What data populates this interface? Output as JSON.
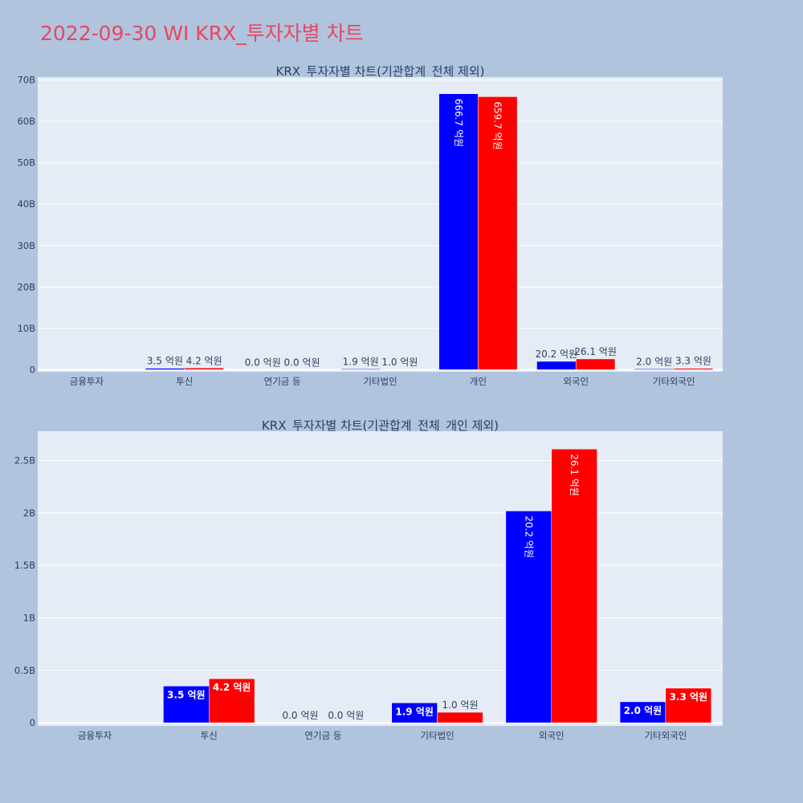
{
  "page": {
    "title": "2022-09-30 WI KRX_투자자별 차트"
  },
  "colors": {
    "buy": "#0000ff",
    "sell": "#ff0000",
    "plot_bg": "#e5ecf6",
    "page_bg": "#b0c4de",
    "title": "#e8475f"
  },
  "chart_data": [
    {
      "type": "bar",
      "title": "KRX_투자자별 차트(기관합계_전체 제외)",
      "categories": [
        "금융투자",
        "투신",
        "연기금 등",
        "기타법인",
        "개인",
        "외국인",
        "기타외국인"
      ],
      "series": [
        {
          "color": "#0000ff",
          "values": [
            0,
            350000000,
            0,
            190000000,
            66670000000,
            2020000000,
            200000000
          ],
          "labels": [
            "",
            "3.5 억원",
            "0.0 억원",
            "1.9 억원",
            "666.7 억원",
            "20.2 억원",
            "2.0 억원"
          ]
        },
        {
          "color": "#ff0000",
          "values": [
            0,
            420000000,
            0,
            100000000,
            65970000000,
            2610000000,
            330000000
          ],
          "labels": [
            "",
            "4.2 억원",
            "0.0 억원",
            "1.0 억원",
            "659.7 억원",
            "26.1 억원",
            "3.3 억원"
          ]
        }
      ],
      "yticks": [
        0,
        10000000000,
        20000000000,
        30000000000,
        40000000000,
        50000000000,
        60000000000,
        70000000000
      ],
      "ytick_labels": [
        "0",
        "10B",
        "20B",
        "30B",
        "40B",
        "50B",
        "60B",
        "70B"
      ],
      "ylim": [
        -500000000,
        70700000000
      ],
      "grid": true
    },
    {
      "type": "bar",
      "title": "KRX_투자자별 차트(기관합계_전체_개인 제외)",
      "categories": [
        "금융투자",
        "투신",
        "연기금 등",
        "기타법인",
        "외국인",
        "기타외국인"
      ],
      "series": [
        {
          "color": "#0000ff",
          "values": [
            0,
            350000000,
            0,
            190000000,
            2020000000,
            200000000
          ],
          "labels": [
            "",
            "3.5 억원",
            "0.0 억원",
            "1.9 억원",
            "20.2 억원",
            "2.0 억원"
          ]
        },
        {
          "color": "#ff0000",
          "values": [
            0,
            420000000,
            0,
            100000000,
            2610000000,
            330000000
          ],
          "labels": [
            "",
            "4.2 억원",
            "0.0 억원",
            "1.0 억원",
            "26.1 억원",
            "3.3 억원"
          ]
        }
      ],
      "yticks": [
        0,
        500000000,
        1000000000,
        1500000000,
        2000000000,
        2500000000
      ],
      "ytick_labels": [
        "0",
        "0.5B",
        "1B",
        "1.5B",
        "2B",
        "2.5B"
      ],
      "ylim": [
        -30000000,
        2780000000
      ],
      "grid": true
    }
  ]
}
